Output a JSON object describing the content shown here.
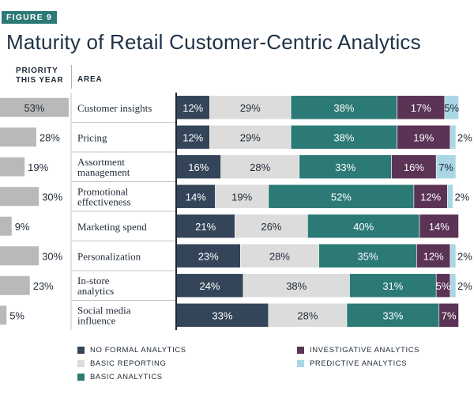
{
  "figure_label": "FIGURE 9",
  "title": "Maturity of Retail Customer-Centric Analytics",
  "headers": {
    "priority": "PRIORITY THIS YEAR",
    "area": "AREA"
  },
  "colors": {
    "no_formal": "#344559",
    "basic_reporting": "#dcdcdc",
    "basic_analytics": "#2c7a76",
    "investigative": "#5b3354",
    "predictive": "#a9d7e6",
    "priority_bar": "#b9b9b9"
  },
  "chart_data": {
    "type": "bar",
    "stacked": true,
    "orientation": "horizontal",
    "title": "Maturity of Retail Customer-Centric Analytics",
    "categories": [
      "Customer insights",
      "Pricing",
      "Assortment management",
      "Promotional effectiveness",
      "Marketing spend",
      "Personalization",
      "In-store analytics",
      "Social media influence"
    ],
    "priority_this_year": [
      53,
      28,
      19,
      30,
      9,
      30,
      23,
      5
    ],
    "priority_labels": [
      "53%",
      "28%",
      "19%",
      "30%",
      "9%",
      "30%",
      "23%",
      "5%"
    ],
    "series": [
      {
        "name": "NO FORMAL ANALYTICS",
        "key": "no_formal",
        "values": [
          12,
          12,
          16,
          14,
          21,
          23,
          24,
          33
        ]
      },
      {
        "name": "BASIC REPORTING",
        "key": "basic_reporting",
        "values": [
          29,
          29,
          28,
          19,
          26,
          28,
          38,
          28
        ]
      },
      {
        "name": "BASIC ANALYTICS",
        "key": "basic_analytics",
        "values": [
          38,
          38,
          33,
          52,
          40,
          35,
          31,
          33
        ]
      },
      {
        "name": "INVESTIGATIVE ANALYTICS",
        "key": "investigative",
        "values": [
          17,
          19,
          16,
          12,
          14,
          12,
          5,
          7
        ]
      },
      {
        "name": "PREDICTIVE ANALYTICS",
        "key": "predictive",
        "values": [
          5,
          2,
          7,
          2,
          0,
          2,
          2,
          0
        ]
      }
    ],
    "legend_position": "bottom",
    "unit": "%"
  }
}
